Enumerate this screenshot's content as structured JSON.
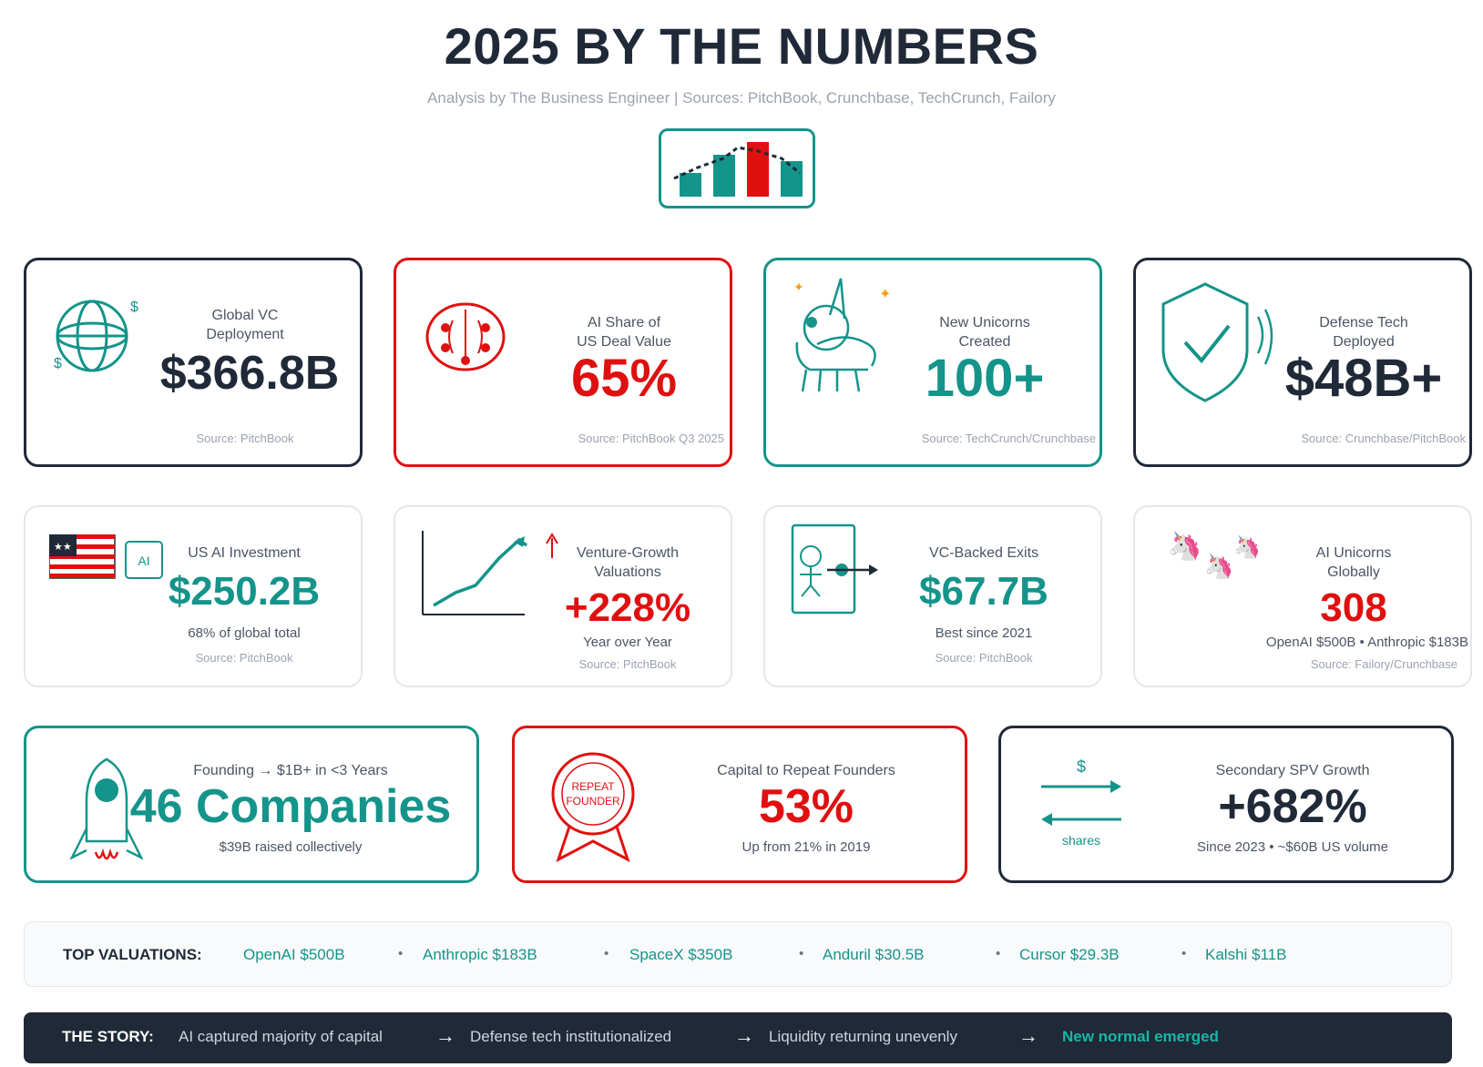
{
  "header": {
    "title": "2025 BY THE NUMBERS",
    "subtitle": "Analysis by The Business Engineer | Sources: PitchBook, Crunchbase, TechCrunch, Failory"
  },
  "colors": {
    "dark": "#1f2937",
    "red": "#e01010",
    "teal": "#14948a",
    "muted": "#9ca3af"
  },
  "row1": [
    {
      "label_a": "Global VC",
      "label_b": "Deployment",
      "value": "$366.8B",
      "source": "Source: PitchBook",
      "icon": "globe-dollar-icon"
    },
    {
      "label_a": "AI Share of",
      "label_b": "US Deal Value",
      "value": "65%",
      "source": "Source: PitchBook Q3 2025",
      "icon": "ai-brain-icon"
    },
    {
      "label_a": "New Unicorns",
      "label_b": "Created",
      "value": "100+",
      "source": "Source: TechCrunch/Crunchbase",
      "icon": "unicorn-icon"
    },
    {
      "label_a": "Defense Tech",
      "label_b": "Deployed",
      "value": "$48B+",
      "source": "Source: Crunchbase/PitchBook",
      "icon": "shield-check-icon"
    }
  ],
  "row2": [
    {
      "label_a": "US AI Investment",
      "label_b": "",
      "value": "$250.2B",
      "note": "68% of global total",
      "source": "Source: PitchBook",
      "icon": "us-flag-ai-icon",
      "ai_badge": "AI"
    },
    {
      "label_a": "Venture-Growth",
      "label_b": "Valuations",
      "value": "+228%",
      "note": "Year over Year",
      "source": "Source: PitchBook",
      "icon": "growth-chart-icon"
    },
    {
      "label_a": "VC-Backed Exits",
      "label_b": "",
      "value": "$67.7B",
      "note": "Best since 2021",
      "source": "Source: PitchBook",
      "icon": "exit-door-icon"
    },
    {
      "label_a": "AI Unicorns",
      "label_b": "Globally",
      "value": "308",
      "note": "OpenAI $500B • Anthropic $183B",
      "source": "Source: Failory/Crunchbase",
      "icon": "unicorns-icon",
      "emoji": "🦄"
    }
  ],
  "row3": [
    {
      "label": "Founding → $1B+ in <3 Years",
      "value": "46 Companies",
      "note": "$39B raised collectively",
      "icon": "rocket-icon"
    },
    {
      "label": "Capital to Repeat Founders",
      "value": "53%",
      "note": "Up from 21% in 2019",
      "icon": "repeat-founder-badge-icon",
      "badge_a": "REPEAT",
      "badge_b": "FOUNDER"
    },
    {
      "label": "Secondary SPV Growth",
      "value": "+682%",
      "note": "Since 2023 • ~$60B US volume",
      "icon": "exchange-arrows-icon",
      "top_text": "$",
      "bottom_text": "shares"
    }
  ],
  "valuations": {
    "heading": "TOP VALUATIONS:",
    "items": [
      "OpenAI $500B",
      "Anthropic $183B",
      "SpaceX $350B",
      "Anduril $30.5B",
      "Cursor $29.3B",
      "Kalshi $11B"
    ],
    "separator": "•"
  },
  "story": {
    "heading": "THE STORY:",
    "steps": [
      "AI captured majority of capital",
      "Defense tech institutionalized",
      "Liquidity returning unevenly",
      "New normal emerged"
    ],
    "arrow": "→"
  }
}
